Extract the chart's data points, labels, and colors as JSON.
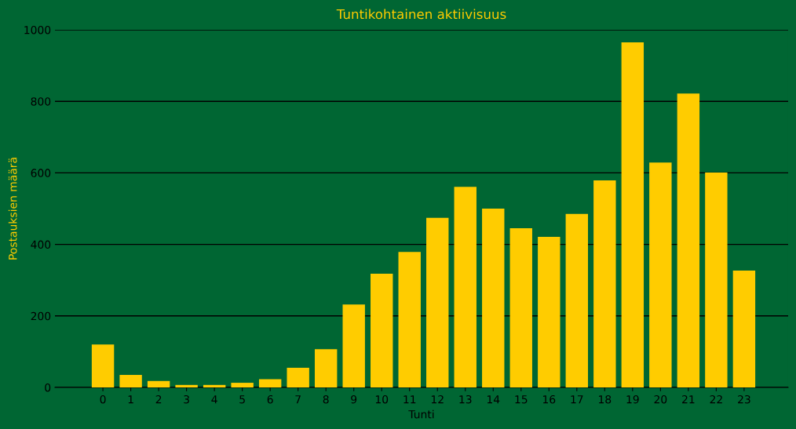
{
  "chart_data": {
    "type": "bar",
    "title": "Tuntikohtainen aktiivisuus",
    "xlabel": "Tunti",
    "ylabel": "Postauksien määrä",
    "categories": [
      "0",
      "1",
      "2",
      "3",
      "4",
      "5",
      "6",
      "7",
      "8",
      "9",
      "10",
      "11",
      "12",
      "13",
      "14",
      "15",
      "16",
      "17",
      "18",
      "19",
      "20",
      "21",
      "22",
      "23"
    ],
    "values": [
      120,
      35,
      18,
      7,
      7,
      13,
      23,
      55,
      107,
      232,
      318,
      379,
      474,
      561,
      500,
      445,
      421,
      485,
      579,
      965,
      629,
      822,
      601,
      327
    ],
    "color": "#ffcc00",
    "ylim": [
      0,
      1000
    ],
    "yticks": [
      0,
      200,
      400,
      600,
      800,
      1000
    ],
    "grid": "y"
  }
}
